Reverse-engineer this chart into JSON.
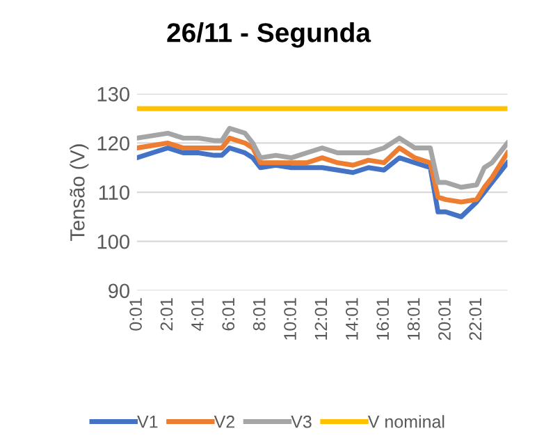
{
  "chart_data": {
    "type": "line",
    "title": "26/11 - Segunda",
    "ylabel": "Tensão (V)",
    "x": [
      0,
      1,
      2,
      3,
      4,
      5,
      5.5,
      6,
      7,
      7.5,
      8,
      9,
      10,
      11,
      12,
      13,
      14,
      15,
      16,
      17,
      18,
      19,
      19.5,
      20,
      21,
      22,
      22.5,
      23,
      24
    ],
    "series": [
      {
        "name": "V1",
        "color": "#4472c4",
        "values": [
          117,
          118,
          119,
          118,
          118,
          117.5,
          117.5,
          119,
          118,
          117,
          115,
          115.5,
          115,
          115,
          115,
          114.5,
          114,
          115,
          114.5,
          117,
          116,
          115,
          106,
          106,
          105,
          108,
          110,
          112,
          116
        ]
      },
      {
        "name": "V2",
        "color": "#ed7d31",
        "values": [
          119,
          119.5,
          120,
          119,
          119,
          119,
          119,
          121,
          120,
          119,
          116,
          116,
          116,
          116,
          117,
          116,
          115.5,
          116.5,
          116,
          119,
          117,
          116,
          109,
          108.5,
          108,
          108.5,
          111,
          113,
          118
        ]
      },
      {
        "name": "V3",
        "color": "#a5a5a5",
        "values": [
          121,
          121.5,
          122,
          121,
          121,
          120.5,
          120.5,
          123,
          122,
          120,
          117,
          117.5,
          117,
          118,
          119,
          118,
          118,
          118,
          119,
          121,
          119,
          119,
          112,
          112,
          111,
          111.5,
          115,
          116,
          120
        ]
      },
      {
        "name": "V nominal",
        "color": "#ffc000",
        "values": [
          127,
          127,
          127,
          127,
          127,
          127,
          127,
          127,
          127,
          127,
          127,
          127,
          127,
          127,
          127,
          127,
          127,
          127,
          127,
          127,
          127,
          127,
          127,
          127,
          127,
          127,
          127,
          127,
          127
        ]
      }
    ],
    "xlim": [
      0,
      24
    ],
    "xticks": [
      {
        "value": 0.0167,
        "label": "0:01"
      },
      {
        "value": 2.0167,
        "label": "2:01"
      },
      {
        "value": 4.0167,
        "label": "4:01"
      },
      {
        "value": 6.0167,
        "label": "6:01"
      },
      {
        "value": 8.0167,
        "label": "8:01"
      },
      {
        "value": 10.0167,
        "label": "10:01"
      },
      {
        "value": 12.0167,
        "label": "12:01"
      },
      {
        "value": 14.0167,
        "label": "14:01"
      },
      {
        "value": 16.0167,
        "label": "16:01"
      },
      {
        "value": 18.0167,
        "label": "18:01"
      },
      {
        "value": 20.0167,
        "label": "20:01"
      },
      {
        "value": 22.0167,
        "label": "22:01"
      }
    ],
    "ylim": [
      90,
      130
    ],
    "yticks": [
      90,
      100,
      110,
      120,
      130
    ],
    "grid": "y",
    "legend": "bottom",
    "marker": "none",
    "line_style": "solid"
  }
}
